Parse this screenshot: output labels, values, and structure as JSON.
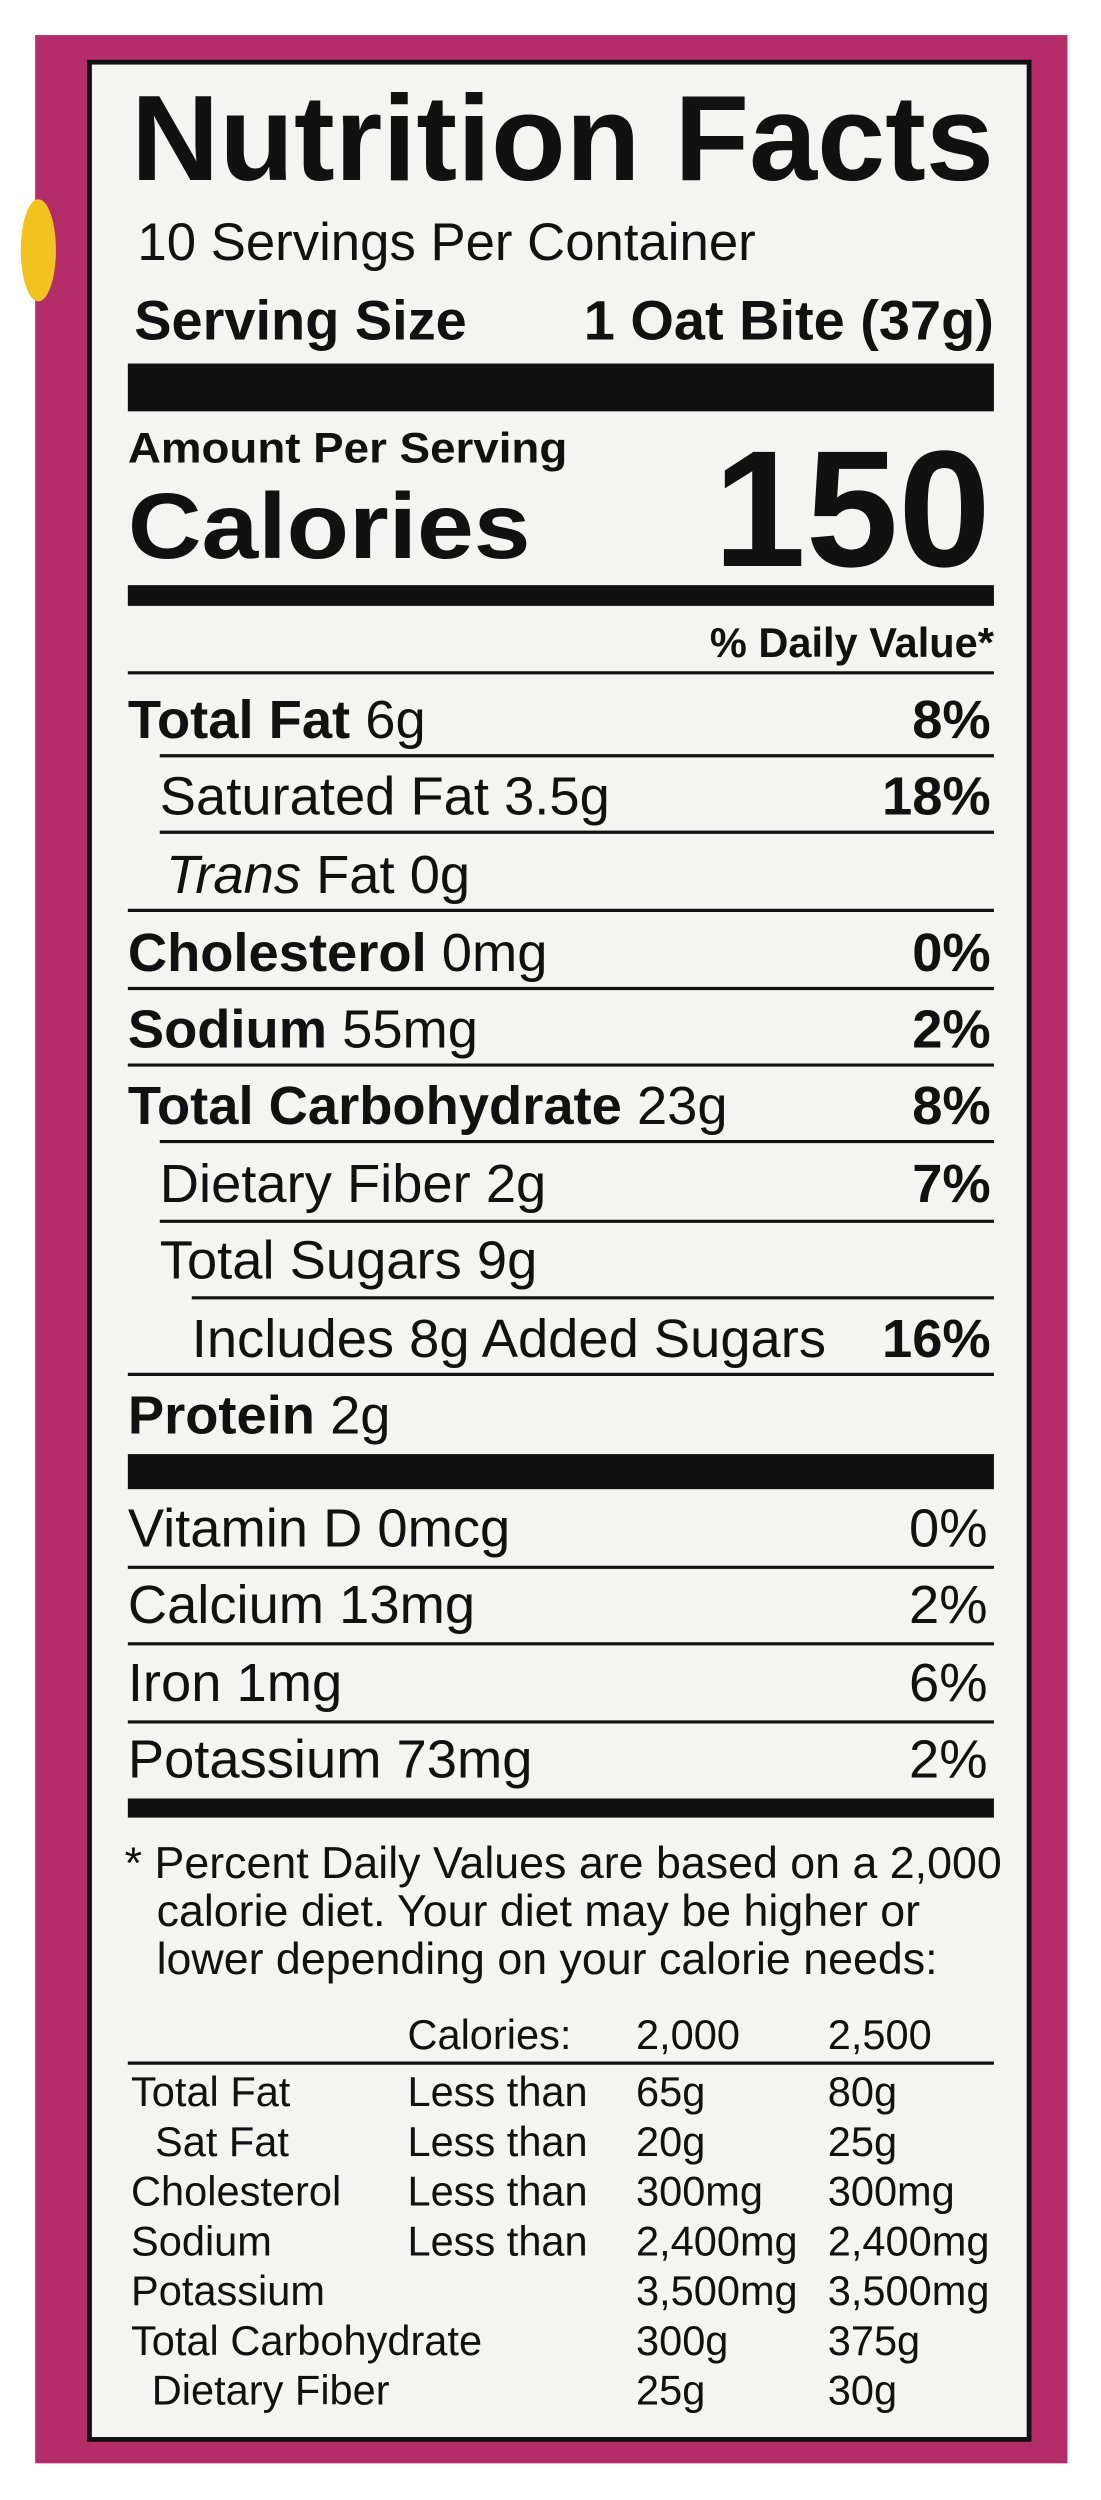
{
  "header": {
    "title": "Nutrition Facts",
    "servings": "10 Servings Per Container",
    "serving_size_label": "Serving Size",
    "serving_size_value": "1 Oat Bite (37g)"
  },
  "calories": {
    "amount_label": "Amount Per Serving",
    "label": "Calories",
    "value": "150"
  },
  "dv_header": "% Daily Value*",
  "nutrients": [
    {
      "name": "Total Fat",
      "amount": "6g",
      "dv": "8%"
    },
    {
      "name": "Saturated Fat",
      "amount": "3.5g",
      "dv": "18%"
    },
    {
      "name_italic": "Trans",
      "name": "Fat",
      "amount": "0g"
    },
    {
      "name": "Cholesterol",
      "amount": "0mg",
      "dv": "0%"
    },
    {
      "name": "Sodium",
      "amount": "55mg",
      "dv": "2%"
    },
    {
      "name": "Total Carbohydrate",
      "amount": "23g",
      "dv": "8%"
    },
    {
      "name": "Dietary Fiber",
      "amount": "2g",
      "dv": "7%"
    },
    {
      "name": "Total Sugars",
      "amount": "9g"
    },
    {
      "name": "Includes 8g Added Sugars",
      "dv": "16%"
    },
    {
      "name": "Protein",
      "amount": "2g"
    }
  ],
  "vitamins": [
    {
      "name": "Vitamin D 0mcg",
      "dv": "0%"
    },
    {
      "name": "Calcium 13mg",
      "dv": "2%"
    },
    {
      "name": "Iron 1mg",
      "dv": "6%"
    },
    {
      "name": "Potassium 73mg",
      "dv": "2%"
    }
  ],
  "footnote": [
    "* Percent Daily Values are based on a 2,000",
    "calorie diet. Your diet may be higher or",
    "lower depending on your calorie needs:"
  ],
  "reference_table": {
    "header": {
      "label": "Calories:",
      "values": [
        "2,000",
        "2,500"
      ]
    },
    "rows": [
      {
        "name": "Total Fat",
        "qualifier": "Less than",
        "values": [
          "65g",
          "80g"
        ]
      },
      {
        "name": "Sat Fat",
        "qualifier": "Less than",
        "values": [
          "20g",
          "25g"
        ]
      },
      {
        "name": "Cholesterol",
        "qualifier": "Less than",
        "values": [
          "300mg",
          "300mg"
        ]
      },
      {
        "name": "Sodium",
        "qualifier": "Less than",
        "values": [
          "2,400mg",
          "2,400mg"
        ]
      },
      {
        "name": "Potassium",
        "values": [
          "3,500mg",
          "3,500mg"
        ]
      },
      {
        "name": "Total Carbohydrate",
        "values": [
          "300g",
          "375g"
        ]
      },
      {
        "name": "Dietary Fiber",
        "values": [
          "25g",
          "30g"
        ]
      }
    ]
  }
}
